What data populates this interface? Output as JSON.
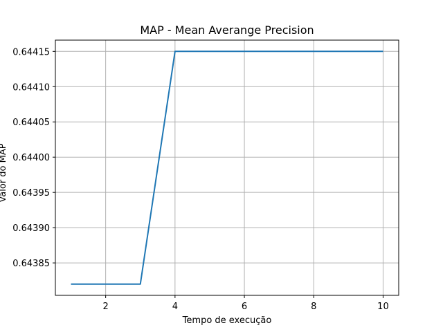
{
  "chart_data": {
    "type": "line",
    "title": "MAP - Mean Averange Precision",
    "xlabel": "Tempo de execução",
    "ylabel": "Valor do MAP",
    "x": [
      1,
      2,
      3,
      4,
      5,
      6,
      7,
      8,
      9,
      10
    ],
    "series": [
      {
        "values": [
          0.64382,
          0.64382,
          0.64382,
          0.64415,
          0.64415,
          0.64415,
          0.64415,
          0.64415,
          0.64415,
          0.64415
        ],
        "color": "#1f77b4"
      }
    ],
    "xlim": [
      0.55,
      10.45
    ],
    "ylim": [
      0.643804,
      0.644166
    ],
    "xticks": [
      2,
      4,
      6,
      8,
      10
    ],
    "xtick_labels": [
      "2",
      "4",
      "6",
      "8",
      "10"
    ],
    "yticks": [
      0.64385,
      0.6439,
      0.64395,
      0.644,
      0.64405,
      0.6441,
      0.64415
    ],
    "ytick_labels": [
      "0.64385",
      "0.64390",
      "0.64395",
      "0.64400",
      "0.64405",
      "0.64410",
      "0.64415"
    ],
    "grid": true,
    "grid_color": "#b0b0b0",
    "axis_color": "#000000"
  }
}
